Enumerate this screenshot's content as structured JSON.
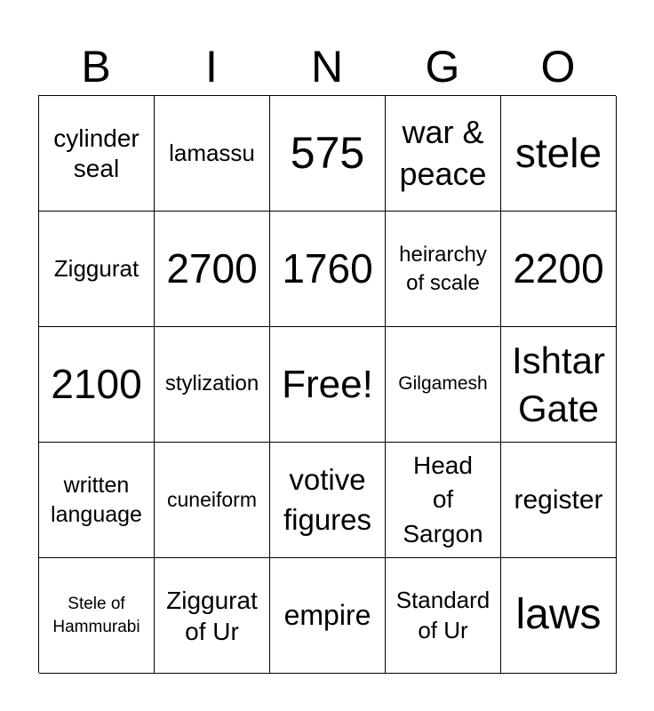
{
  "header": [
    "B",
    "I",
    "N",
    "G",
    "O"
  ],
  "cells": [
    "cylinder\nseal",
    "lamassu",
    "575",
    "war &\npeace",
    "stele",
    "Ziggurat",
    "2700",
    "1760",
    "heirarchy\nof scale",
    "2200",
    "2100",
    "stylization",
    "Free!",
    "Gilgamesh",
    "Ishtar\nGate",
    "written\nlanguage",
    "cuneiform",
    "votive\nfigures",
    "Head\nof\nSargon",
    "register",
    "Stele of\nHammurabi",
    "Ziggurat\nof Ur",
    "empire",
    "Standard\nof Ur",
    "laws"
  ]
}
